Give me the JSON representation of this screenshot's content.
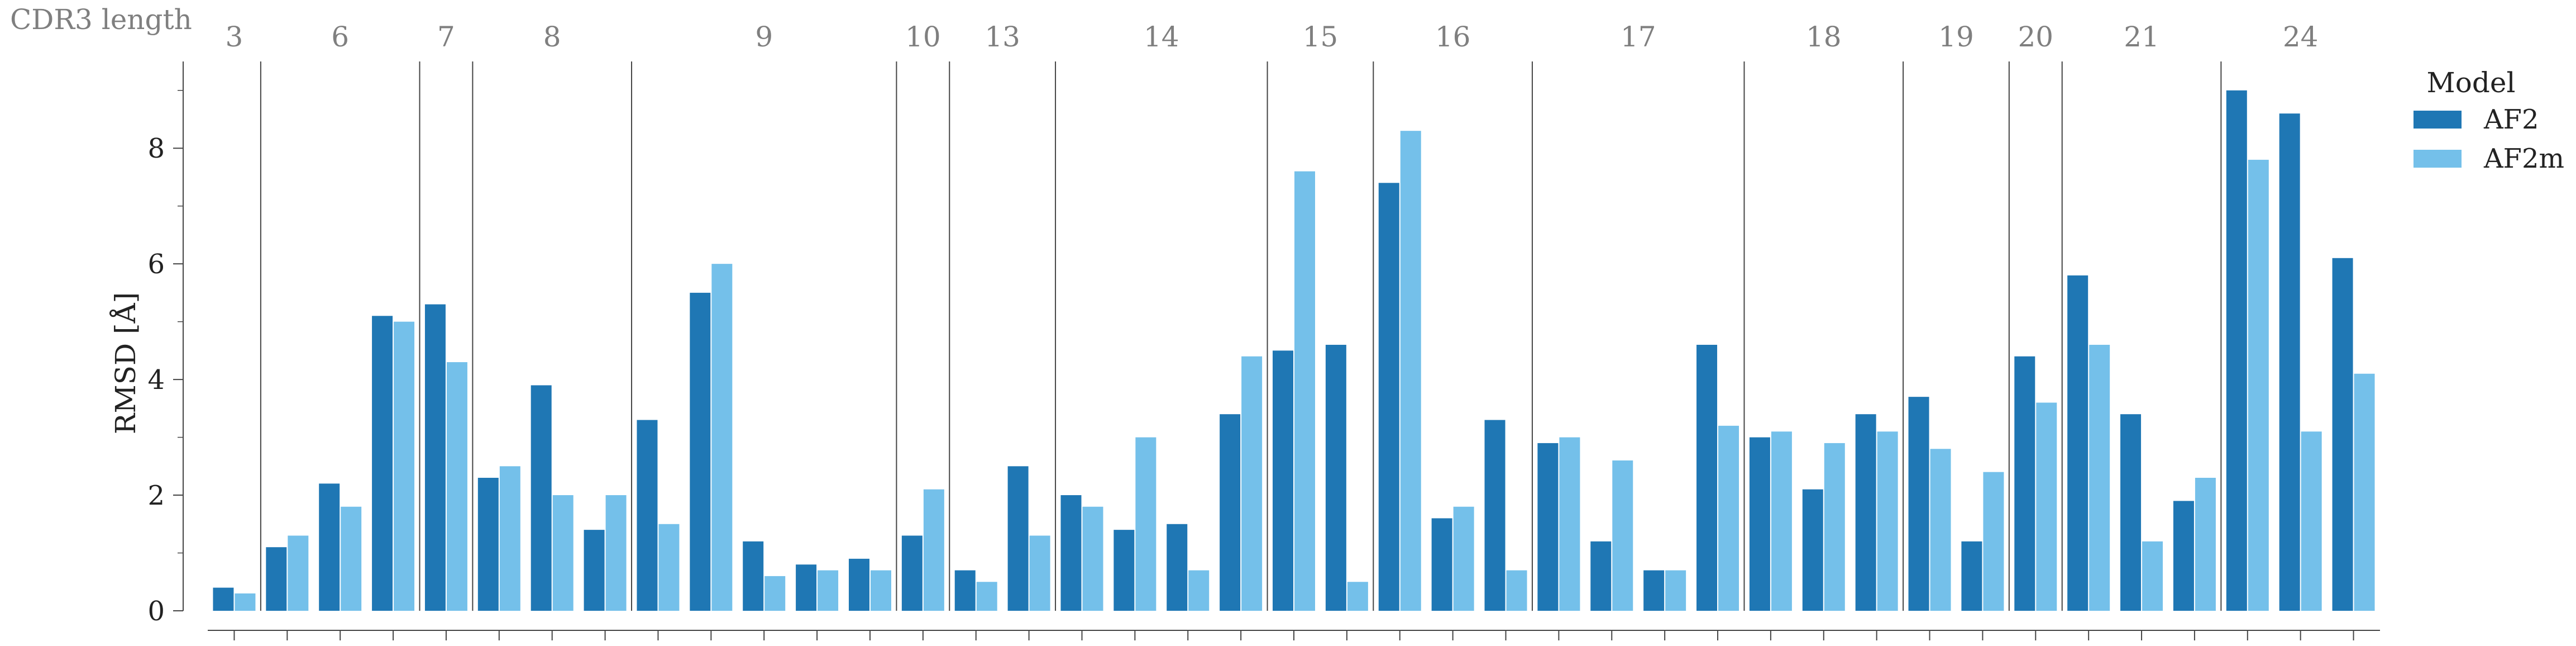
{
  "chart_data": {
    "type": "bar",
    "title": "",
    "xlabel": "",
    "ylabel": "RMSD [Å]",
    "ylim": [
      0,
      9.5
    ],
    "yticks": [
      0,
      2,
      4,
      6,
      8
    ],
    "grid": false,
    "legend_placement": "right",
    "group_axis_label": "CDR3 length",
    "legend": {
      "title": "Model",
      "entries": [
        {
          "label": "AF2",
          "color": "#1f77b4"
        },
        {
          "label": "AF2m",
          "color": "#74c0ea"
        }
      ]
    },
    "groups": [
      {
        "label": "3",
        "count": 1
      },
      {
        "label": "6",
        "count": 3
      },
      {
        "label": "7",
        "count": 1
      },
      {
        "label": "8",
        "count": 3
      },
      {
        "label": "9",
        "count": 5
      },
      {
        "label": "10",
        "count": 1
      },
      {
        "label": "13",
        "count": 2
      },
      {
        "label": "14",
        "count": 4
      },
      {
        "label": "15",
        "count": 2
      },
      {
        "label": "16",
        "count": 3
      },
      {
        "label": "17",
        "count": 4
      },
      {
        "label": "18",
        "count": 3
      },
      {
        "label": "19",
        "count": 2
      },
      {
        "label": "20",
        "count": 1
      },
      {
        "label": "21",
        "count": 3
      },
      {
        "label": "24",
        "count": 3
      }
    ],
    "series": [
      {
        "name": "AF2",
        "color": "#1f77b4",
        "values": [
          0.4,
          1.1,
          2.2,
          5.1,
          5.3,
          2.3,
          3.9,
          1.4,
          3.3,
          5.5,
          1.2,
          0.8,
          0.9,
          1.3,
          0.7,
          2.5,
          2.0,
          1.4,
          1.5,
          3.4,
          4.5,
          4.6,
          7.4,
          1.6,
          3.3,
          2.9,
          1.2,
          0.7,
          4.6,
          3.0,
          2.1,
          3.4,
          3.7,
          1.2,
          4.4,
          5.8,
          3.4,
          1.9,
          9.0,
          8.6,
          6.1
        ]
      },
      {
        "name": "AF2m",
        "color": "#74c0ea",
        "values": [
          0.3,
          1.3,
          1.8,
          5.0,
          4.3,
          2.5,
          2.0,
          2.0,
          1.5,
          6.0,
          0.6,
          0.7,
          0.7,
          2.1,
          0.5,
          1.3,
          1.8,
          3.0,
          0.7,
          4.4,
          7.6,
          0.5,
          8.3,
          1.8,
          0.7,
          3.0,
          2.6,
          0.7,
          3.2,
          3.1,
          2.9,
          3.1,
          2.8,
          2.4,
          3.6,
          4.6,
          1.2,
          2.3,
          7.8,
          3.1,
          4.1
        ]
      }
    ]
  }
}
